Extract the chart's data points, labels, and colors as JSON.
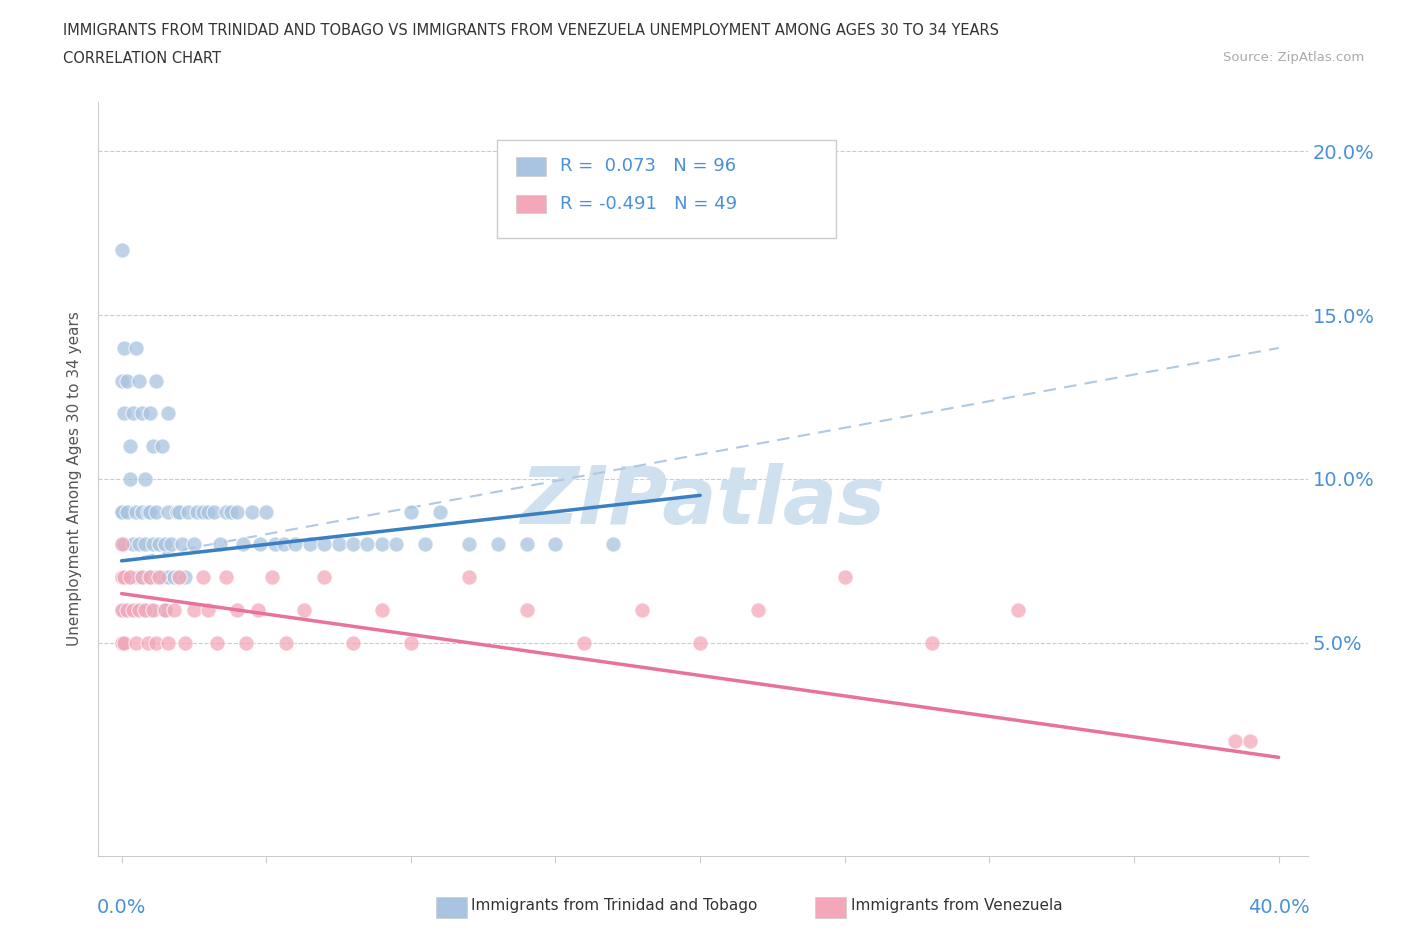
{
  "title_line1": "IMMIGRANTS FROM TRINIDAD AND TOBAGO VS IMMIGRANTS FROM VENEZUELA UNEMPLOYMENT AMONG AGES 30 TO 34 YEARS",
  "title_line2": "CORRELATION CHART",
  "source_text": "Source: ZipAtlas.com",
  "ylabel": "Unemployment Among Ages 30 to 34 years",
  "legend_label1": "Immigrants from Trinidad and Tobago",
  "legend_label2": "Immigrants from Venezuela",
  "r1": 0.073,
  "n1": 96,
  "r2": -0.491,
  "n2": 49,
  "color1": "#a8c4e0",
  "color2": "#f4a7b9",
  "trendline1_color": "#3a7fc1",
  "trendline2_color": "#e8729a",
  "dash_color": "#b0c8e0",
  "watermark": "ZIPatlas",
  "watermark_color": "#cfe0ef",
  "xmin": 0.0,
  "xmax": 0.4,
  "ymin": 0.0,
  "ymax": 0.2,
  "right_yticks": [
    0.05,
    0.1,
    0.15,
    0.2
  ],
  "right_yticklabels": [
    "5.0%",
    "10.0%",
    "15.0%",
    "20.0%"
  ],
  "tt_x": [
    0.0,
    0.0,
    0.0,
    0.0,
    0.0,
    0.0,
    0.0,
    0.0,
    0.0,
    0.0,
    0.001,
    0.001,
    0.001,
    0.002,
    0.002,
    0.003,
    0.003,
    0.004,
    0.005,
    0.005,
    0.005,
    0.006,
    0.006,
    0.007,
    0.007,
    0.008,
    0.008,
    0.009,
    0.009,
    0.01,
    0.01,
    0.01,
    0.011,
    0.012,
    0.012,
    0.013,
    0.014,
    0.015,
    0.015,
    0.016,
    0.016,
    0.017,
    0.018,
    0.019,
    0.02,
    0.02,
    0.021,
    0.022,
    0.023,
    0.025,
    0.026,
    0.028,
    0.03,
    0.032,
    0.034,
    0.036,
    0.038,
    0.04,
    0.042,
    0.045,
    0.048,
    0.05,
    0.053,
    0.056,
    0.06,
    0.065,
    0.07,
    0.075,
    0.08,
    0.085,
    0.09,
    0.095,
    0.1,
    0.105,
    0.11,
    0.12,
    0.13,
    0.14,
    0.15,
    0.17,
    0.0,
    0.0,
    0.001,
    0.001,
    0.002,
    0.003,
    0.004,
    0.005,
    0.006,
    0.007,
    0.008,
    0.01,
    0.011,
    0.012,
    0.014,
    0.016
  ],
  "tt_y": [
    0.05,
    0.05,
    0.06,
    0.06,
    0.07,
    0.07,
    0.08,
    0.08,
    0.09,
    0.09,
    0.06,
    0.07,
    0.08,
    0.07,
    0.09,
    0.07,
    0.1,
    0.08,
    0.06,
    0.07,
    0.09,
    0.07,
    0.08,
    0.07,
    0.09,
    0.06,
    0.08,
    0.07,
    0.09,
    0.06,
    0.07,
    0.09,
    0.08,
    0.07,
    0.09,
    0.08,
    0.07,
    0.06,
    0.08,
    0.07,
    0.09,
    0.08,
    0.07,
    0.09,
    0.07,
    0.09,
    0.08,
    0.07,
    0.09,
    0.08,
    0.09,
    0.09,
    0.09,
    0.09,
    0.08,
    0.09,
    0.09,
    0.09,
    0.08,
    0.09,
    0.08,
    0.09,
    0.08,
    0.08,
    0.08,
    0.08,
    0.08,
    0.08,
    0.08,
    0.08,
    0.08,
    0.08,
    0.09,
    0.08,
    0.09,
    0.08,
    0.08,
    0.08,
    0.08,
    0.08,
    0.13,
    0.17,
    0.12,
    0.14,
    0.13,
    0.11,
    0.12,
    0.14,
    0.13,
    0.12,
    0.1,
    0.12,
    0.11,
    0.13,
    0.11,
    0.12
  ],
  "vz_x": [
    0.0,
    0.0,
    0.0,
    0.0,
    0.001,
    0.001,
    0.002,
    0.003,
    0.004,
    0.005,
    0.006,
    0.007,
    0.008,
    0.009,
    0.01,
    0.011,
    0.012,
    0.013,
    0.015,
    0.016,
    0.018,
    0.02,
    0.022,
    0.025,
    0.028,
    0.03,
    0.033,
    0.036,
    0.04,
    0.043,
    0.047,
    0.052,
    0.057,
    0.063,
    0.07,
    0.08,
    0.09,
    0.1,
    0.12,
    0.14,
    0.16,
    0.18,
    0.2,
    0.22,
    0.25,
    0.28,
    0.31,
    0.385,
    0.39
  ],
  "vz_y": [
    0.05,
    0.06,
    0.07,
    0.08,
    0.05,
    0.07,
    0.06,
    0.07,
    0.06,
    0.05,
    0.06,
    0.07,
    0.06,
    0.05,
    0.07,
    0.06,
    0.05,
    0.07,
    0.06,
    0.05,
    0.06,
    0.07,
    0.05,
    0.06,
    0.07,
    0.06,
    0.05,
    0.07,
    0.06,
    0.05,
    0.06,
    0.07,
    0.05,
    0.06,
    0.07,
    0.05,
    0.06,
    0.05,
    0.07,
    0.06,
    0.05,
    0.06,
    0.05,
    0.06,
    0.07,
    0.05,
    0.06,
    0.02,
    0.02
  ],
  "tt_trend_x": [
    0.0,
    0.2
  ],
  "tt_trend_y": [
    0.075,
    0.095
  ],
  "vz_trend_x": [
    0.0,
    0.4
  ],
  "vz_trend_y": [
    0.065,
    0.015
  ],
  "dash_trend_x": [
    0.0,
    0.4
  ],
  "dash_trend_y": [
    0.075,
    0.14
  ]
}
